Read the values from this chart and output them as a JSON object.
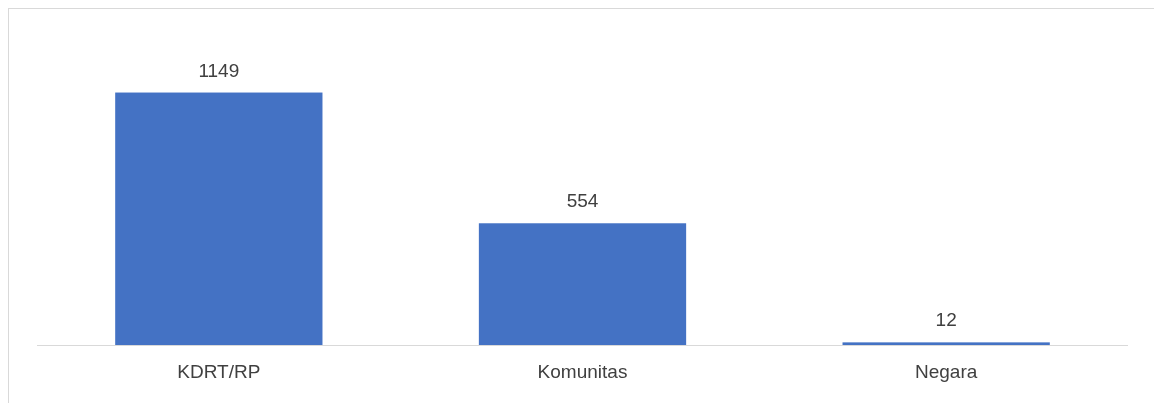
{
  "chart_data": {
    "type": "bar",
    "categories": [
      "KDRT/RP",
      "Komunitas",
      "Negara"
    ],
    "values": [
      1149,
      554,
      12
    ],
    "color": "#4472c4",
    "data_labels": true
  }
}
